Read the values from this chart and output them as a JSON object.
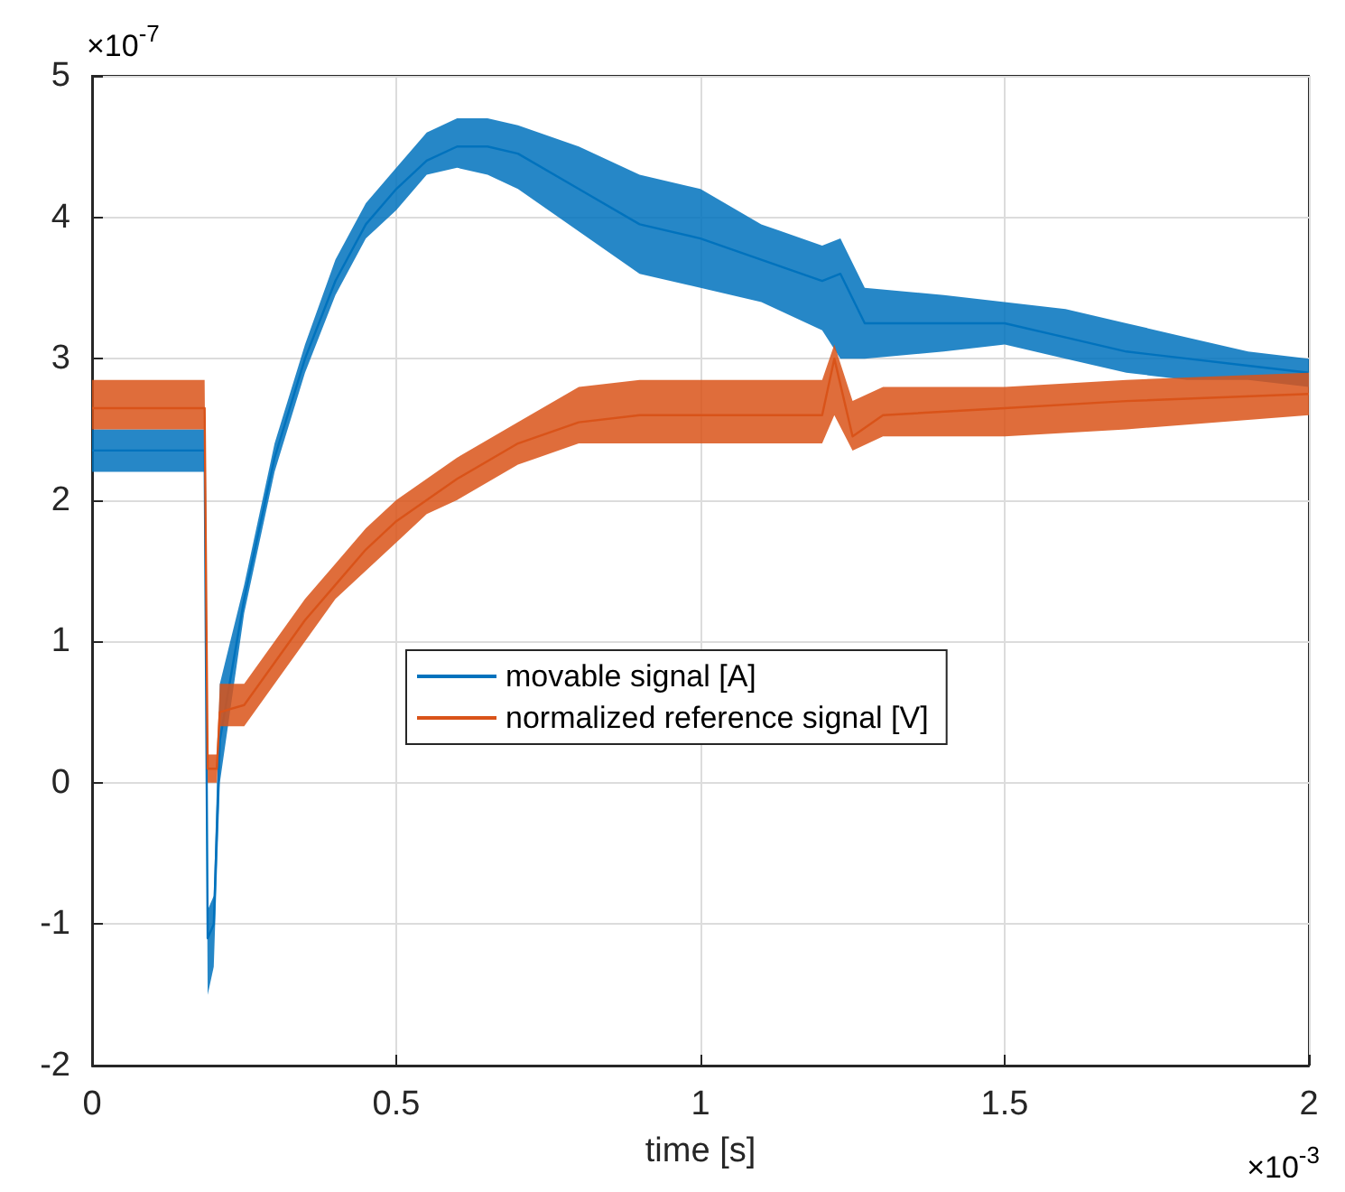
{
  "chart_data": {
    "type": "line",
    "xlabel": "time [s]",
    "annotations": [
      "×10$^{-7}$",
      "×10$^{-3}$"
    ],
    "xlim": [
      0,
      2
    ],
    "xticks": [
      0,
      0.5,
      1,
      1.5,
      2
    ],
    "ylim": [
      -2,
      5
    ],
    "yticks": [
      -2,
      -1,
      0,
      1,
      2,
      3,
      4,
      5
    ],
    "grid": true,
    "legend": "center",
    "line_style": "solid",
    "marker": "none",
    "series": [
      {
        "name": "movable signal [A]",
        "color": "#0072bd",
        "x": [
          0,
          0.185,
          0.19,
          0.2,
          0.21,
          0.25,
          0.3,
          0.35,
          0.4,
          0.45,
          0.5,
          0.55,
          0.6,
          0.65,
          0.7,
          0.8,
          0.9,
          1.0,
          1.1,
          1.2,
          1.23,
          1.27,
          1.4,
          1.5,
          1.6,
          1.7,
          1.8,
          1.9,
          2.0
        ],
        "values": [
          2.35,
          2.35,
          -1.1,
          -1.0,
          0.3,
          1.3,
          2.3,
          3.0,
          3.55,
          3.95,
          4.2,
          4.4,
          4.5,
          4.5,
          4.45,
          4.2,
          3.95,
          3.85,
          3.7,
          3.55,
          3.6,
          3.25,
          3.25,
          3.25,
          3.15,
          3.05,
          3.0,
          2.95,
          2.9
        ],
        "lower": [
          2.2,
          2.2,
          -1.5,
          -1.3,
          0,
          1.2,
          2.2,
          2.9,
          3.45,
          3.85,
          4.05,
          4.3,
          4.35,
          4.3,
          4.2,
          3.9,
          3.6,
          3.5,
          3.4,
          3.2,
          3.0,
          3.0,
          3.05,
          3.1,
          3.0,
          2.9,
          2.85,
          2.85,
          2.8
        ],
        "upper": [
          2.5,
          2.5,
          -0.9,
          -0.8,
          0.7,
          1.4,
          2.4,
          3.1,
          3.7,
          4.1,
          4.35,
          4.6,
          4.7,
          4.7,
          4.65,
          4.5,
          4.3,
          4.2,
          3.95,
          3.8,
          3.85,
          3.5,
          3.45,
          3.4,
          3.35,
          3.25,
          3.15,
          3.05,
          3.0
        ]
      },
      {
        "name": "normalized reference signal [V]",
        "color": "#d95319",
        "x": [
          0,
          0.185,
          0.19,
          0.205,
          0.21,
          0.25,
          0.3,
          0.35,
          0.4,
          0.45,
          0.5,
          0.55,
          0.6,
          0.7,
          0.8,
          0.9,
          1.0,
          1.1,
          1.2,
          1.22,
          1.25,
          1.3,
          1.5,
          1.7,
          2.0
        ],
        "values": [
          2.65,
          2.65,
          0.1,
          0.1,
          0.5,
          0.55,
          0.85,
          1.15,
          1.4,
          1.65,
          1.85,
          2.0,
          2.15,
          2.4,
          2.55,
          2.6,
          2.6,
          2.6,
          2.6,
          3.0,
          2.45,
          2.6,
          2.65,
          2.7,
          2.75
        ],
        "lower": [
          2.5,
          2.5,
          0,
          0,
          0.4,
          0.4,
          0.7,
          1.0,
          1.3,
          1.5,
          1.7,
          1.9,
          2.0,
          2.25,
          2.4,
          2.4,
          2.4,
          2.4,
          2.4,
          2.6,
          2.35,
          2.45,
          2.45,
          2.5,
          2.6
        ],
        "upper": [
          2.85,
          2.85,
          0.2,
          0.2,
          0.7,
          0.7,
          1.0,
          1.3,
          1.55,
          1.8,
          2.0,
          2.15,
          2.3,
          2.55,
          2.8,
          2.85,
          2.85,
          2.85,
          2.85,
          3.1,
          2.7,
          2.8,
          2.8,
          2.85,
          2.9
        ]
      }
    ]
  }
}
